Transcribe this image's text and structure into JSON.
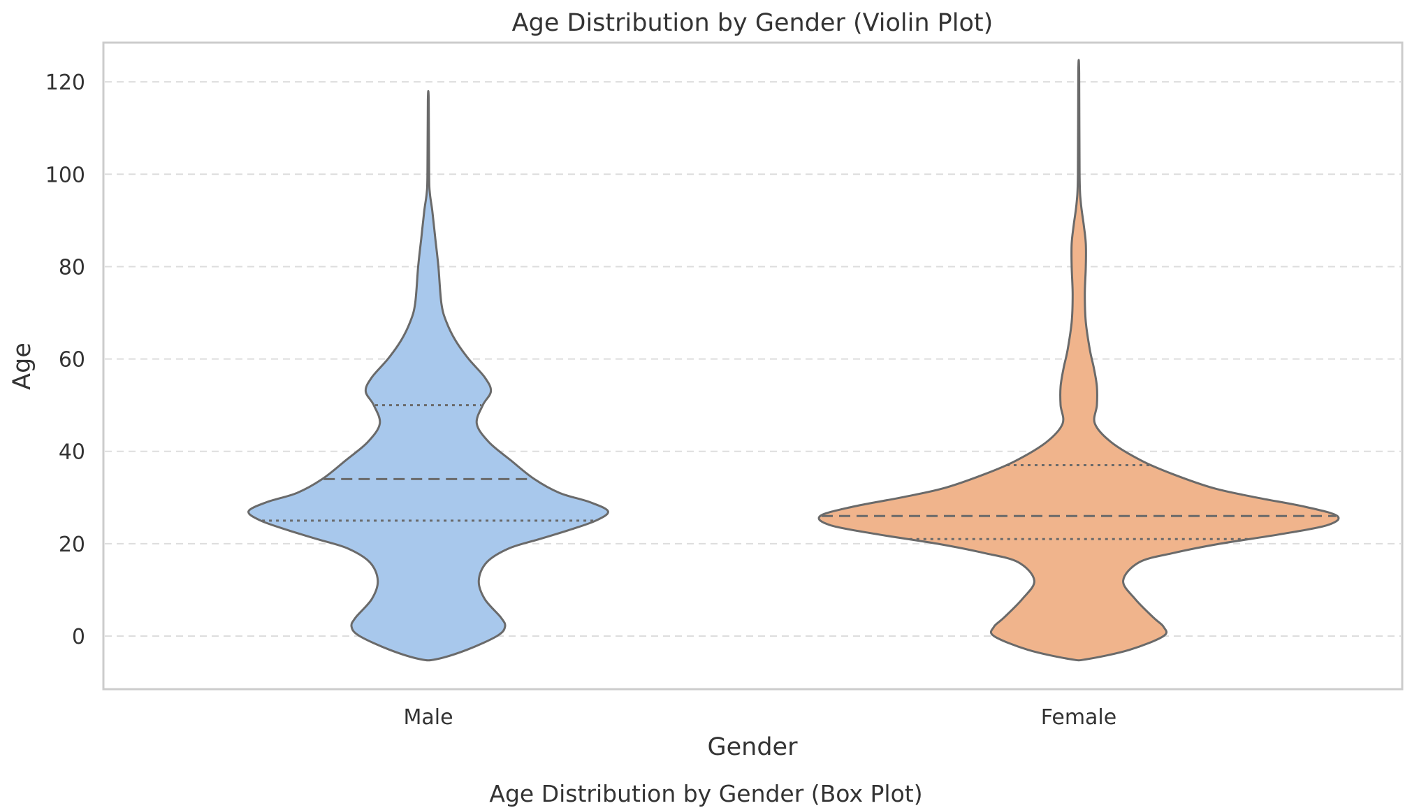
{
  "chart_data": [
    {
      "type": "violin",
      "title": "Age Distribution by Gender (Violin Plot)",
      "xlabel": "Gender",
      "ylabel": "Age",
      "ylim": [
        -11.5,
        128.5
      ],
      "yticks": [
        0,
        20,
        40,
        60,
        80,
        100,
        120
      ],
      "grid": true,
      "series": [
        {
          "category": "Male",
          "color": "#a8c8ec",
          "range": [
            -5,
            116
          ],
          "quartiles": {
            "q1": 25,
            "median": 34,
            "q3": 50
          },
          "density": [
            [
              -5,
              0.08
            ],
            [
              -3,
              0.38
            ],
            [
              0,
              0.68
            ],
            [
              2,
              0.76
            ],
            [
              4,
              0.72
            ],
            [
              8,
              0.56
            ],
            [
              12,
              0.5
            ],
            [
              16,
              0.58
            ],
            [
              19,
              0.8
            ],
            [
              21,
              1.1
            ],
            [
              23,
              1.4
            ],
            [
              25,
              1.66
            ],
            [
              27,
              1.78
            ],
            [
              29,
              1.6
            ],
            [
              31,
              1.3
            ],
            [
              34,
              1.05
            ],
            [
              38,
              0.82
            ],
            [
              42,
              0.6
            ],
            [
              46,
              0.48
            ],
            [
              50,
              0.54
            ],
            [
              53,
              0.62
            ],
            [
              56,
              0.56
            ],
            [
              60,
              0.4
            ],
            [
              64,
              0.27
            ],
            [
              68,
              0.18
            ],
            [
              72,
              0.13
            ],
            [
              80,
              0.1
            ],
            [
              86,
              0.07
            ],
            [
              92,
              0.04
            ],
            [
              96,
              0.015
            ],
            [
              100,
              0.008
            ],
            [
              116,
              0.004
            ]
          ]
        },
        {
          "category": "Female",
          "color": "#f0b48c",
          "range": [
            -5,
            122
          ],
          "quartiles": {
            "q1": 21,
            "median": 26,
            "q3": 37
          },
          "density": [
            [
              -5,
              0.08
            ],
            [
              -3,
              0.5
            ],
            [
              0,
              0.84
            ],
            [
              2,
              0.84
            ],
            [
              4,
              0.74
            ],
            [
              8,
              0.56
            ],
            [
              12,
              0.44
            ],
            [
              16,
              0.6
            ],
            [
              18,
              0.94
            ],
            [
              20,
              1.4
            ],
            [
              22,
              1.98
            ],
            [
              24,
              2.46
            ],
            [
              26,
              2.56
            ],
            [
              28,
              2.24
            ],
            [
              30,
              1.76
            ],
            [
              32,
              1.34
            ],
            [
              35,
              0.94
            ],
            [
              38,
              0.62
            ],
            [
              42,
              0.32
            ],
            [
              46,
              0.16
            ],
            [
              50,
              0.18
            ],
            [
              54,
              0.18
            ],
            [
              58,
              0.15
            ],
            [
              62,
              0.11
            ],
            [
              68,
              0.07
            ],
            [
              74,
              0.06
            ],
            [
              80,
              0.07
            ],
            [
              85,
              0.07
            ],
            [
              89,
              0.05
            ],
            [
              94,
              0.02
            ],
            [
              100,
              0.008
            ],
            [
              122,
              0.004
            ]
          ]
        }
      ]
    },
    {
      "type": "box",
      "title": "Age Distribution by Gender (Box Plot)"
    }
  ],
  "colors": {
    "line": "#6a6a6a",
    "grid": "#dddddd",
    "frame": "#cccccc",
    "text": "#333333"
  }
}
